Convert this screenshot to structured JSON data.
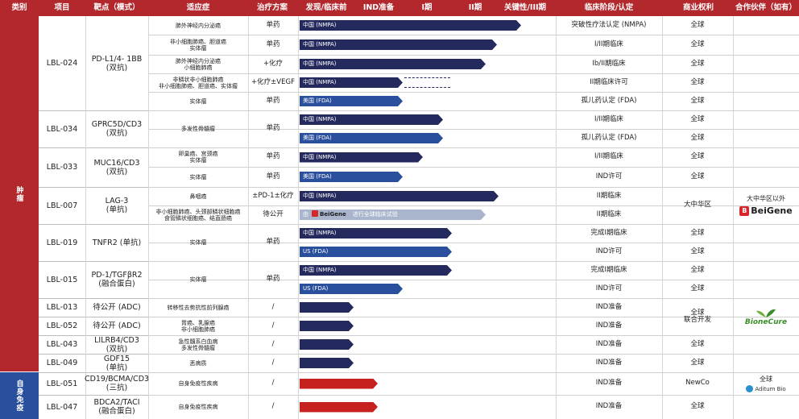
{
  "headers": {
    "category": "类别",
    "project": "项目",
    "target": "靶点（模式）",
    "indication": "适应症",
    "scheme": "治疗方案",
    "discovery": "发现/临床前",
    "ind": "IND准备",
    "phase1": "I期",
    "phase2": "II期",
    "pivotal": "关键性/III期",
    "stage": "临床阶段/认定",
    "rights": "商业权利",
    "partner": "合作伙伴（如有）"
  },
  "categories": {
    "oncology": "肿瘤",
    "autoimmune": "自身免疫"
  },
  "colors": {
    "header": "#b3282d",
    "navy": "#242a5e",
    "blue": "#2a4f9c",
    "red": "#c6201f",
    "lightblue": "#a9b5cc"
  },
  "projects": [
    {
      "id": "LBL-024",
      "target": [
        "PD-L1/4- 1BB",
        "(双抗)"
      ]
    },
    {
      "id": "LBL-034",
      "target": [
        "GPRC5D/CD3",
        "(双抗)"
      ]
    },
    {
      "id": "LBL-033",
      "target": [
        "MUC16/CD3",
        "(双抗)"
      ]
    },
    {
      "id": "LBL-007",
      "target": [
        "LAG-3",
        "(单抗)"
      ]
    },
    {
      "id": "LBL-019",
      "target": [
        "TNFR2 (单抗)"
      ]
    },
    {
      "id": "LBL-015",
      "target": [
        "PD-1/TGFβR2",
        "(融合蛋白)"
      ]
    },
    {
      "id": "LBL-013",
      "target": [
        "待公开 (ADC)"
      ]
    },
    {
      "id": "LBL-052",
      "target": [
        "待公开 (ADC)"
      ]
    },
    {
      "id": "LBL-043",
      "target": [
        "LILRB4/CD3",
        "(双抗)"
      ]
    },
    {
      "id": "LBL-049",
      "target": [
        "GDF15",
        "(单抗)"
      ]
    },
    {
      "id": "LBL-051",
      "target": [
        "CD19/BCMA/CD3",
        "(三抗)"
      ]
    },
    {
      "id": "LBL-047",
      "target": [
        "BDCA2/TACI",
        "(融合蛋白)"
      ]
    }
  ],
  "rows": [
    {
      "ind": [
        "肺外神经内分泌癌"
      ],
      "scheme": "单药",
      "bar": "中国 (NMPA)",
      "progress": 0.99,
      "stage": "突破性疗法认定 (NMPA)",
      "rights": "全球"
    },
    {
      "ind": [
        "非小细胞肺癌、胆道癌",
        "实体瘤"
      ],
      "scheme": "单药",
      "bar": "中国 (NMPA)",
      "progress": 0.88,
      "stage": "I/II期临床",
      "rights": "全球"
    },
    {
      "ind": [
        "肺外神经内分泌癌",
        "小细胞肺癌"
      ],
      "scheme": "+化疗",
      "bar": "中国 (NMPA)",
      "progress": 0.83,
      "stage": "Ib/II期临床",
      "rights": "全球"
    },
    {
      "ind": [
        "非鳞状非小细胞肺癌",
        "非小细胞肺癌、胆道癌、实体瘤"
      ],
      "scheme": "+化疗±VEGF",
      "bar": "中国 (NMPA)",
      "progress": 0.46,
      "stage": "II期临床许可",
      "rights": "全球",
      "planned_to": 0.68
    },
    {
      "ind": [
        "实体瘤"
      ],
      "scheme": "单药",
      "bar": "美国 (FDA)",
      "progress": 0.46,
      "stage": "孤儿药认定 (FDA)",
      "rights": "全球"
    },
    {
      "ind": [
        "多发性骨髓瘤"
      ],
      "scheme": "单药",
      "bar": "中国 (NMPA)",
      "progress": 0.64,
      "stage": "I/II期临床",
      "rights": "全球"
    },
    {
      "ind": [],
      "scheme": "",
      "bar": "美国 (FDA)",
      "progress": 0.64,
      "stage": "孤儿药认定 (FDA)",
      "rights": "全球"
    },
    {
      "ind": [
        "卵巢癌、宫颈癌",
        "实体瘤"
      ],
      "scheme": "单药",
      "bar": "中国 (NMPA)",
      "progress": 0.55,
      "stage": "I/II期临床",
      "rights": "全球"
    },
    {
      "ind": [
        "实体瘤"
      ],
      "scheme": "单药",
      "bar": "美国 (FDA)",
      "progress": 0.46,
      "stage": "IND许可",
      "rights": "全球"
    },
    {
      "ind": [
        "鼻咽癌"
      ],
      "scheme": "±PD-1±化疗",
      "bar": "中国 (NMPA)",
      "progress": 0.89,
      "stage": "II期临床",
      "rights": "大中华区"
    },
    {
      "ind": [
        "非小细胞肺癌、头颈部鳞状细胞癌",
        "食管鳞状细胞癌、结直肠癌"
      ],
      "scheme": "待公开",
      "bar": "由",
      "bar_brand": "BeiGene",
      "bar_note": "进行全球临床试验",
      "progress": 0.83,
      "stage": "II期临床",
      "rights": ""
    },
    {
      "ind": [
        "实体瘤"
      ],
      "scheme": "单药",
      "bar": "中国 (NMPA)",
      "progress": 0.68,
      "stage": "完成I期临床",
      "rights": "全球"
    },
    {
      "ind": [],
      "scheme": "",
      "bar": "US (FDA)",
      "progress": 0.68,
      "stage": "IND许可",
      "rights": "全球"
    },
    {
      "ind": [
        "实体瘤"
      ],
      "scheme": "单药",
      "bar": "中国 (NMPA)",
      "progress": 0.68,
      "stage": "完成I期临床",
      "rights": "全球"
    },
    {
      "ind": [],
      "scheme": "",
      "bar": "US (FDA)",
      "progress": 0.46,
      "stage": "IND许可",
      "rights": "全球"
    },
    {
      "ind": [
        "转移性去势抗性前列腺癌"
      ],
      "scheme": "/",
      "bar": "",
      "progress": 0.24,
      "stage": "IND准备",
      "rights": [
        "全球",
        "联合开发"
      ]
    },
    {
      "ind": [
        "胃癌、乳腺癌",
        "非小细胞肺癌"
      ],
      "scheme": "/",
      "bar": "",
      "progress": 0.24,
      "stage": "IND准备",
      "rights": ""
    },
    {
      "ind": [
        "急性髓系白血病",
        "多发性骨髓瘤"
      ],
      "scheme": "/",
      "bar": "",
      "progress": 0.24,
      "stage": "IND准备",
      "rights": "全球"
    },
    {
      "ind": [
        "恶病质"
      ],
      "scheme": "/",
      "bar": "",
      "progress": 0.24,
      "stage": "IND准备",
      "rights": "全球"
    },
    {
      "ind": [
        "自身免疫性疾病"
      ],
      "scheme": "/",
      "bar": "",
      "progress": 0.35,
      "stage": "IND准备",
      "rights": "NewCo"
    },
    {
      "ind": [
        "自身免疫性疾病"
      ],
      "scheme": "/",
      "bar": "",
      "progress": 0.35,
      "stage": "IND准备",
      "rights": "全球"
    }
  ],
  "partners": {
    "beigene_region": "大中华区以外",
    "beigene": "BeiGene",
    "bionecure": "BioneCure",
    "aditum_region": "全球",
    "aditum": "Aditum Bio"
  }
}
